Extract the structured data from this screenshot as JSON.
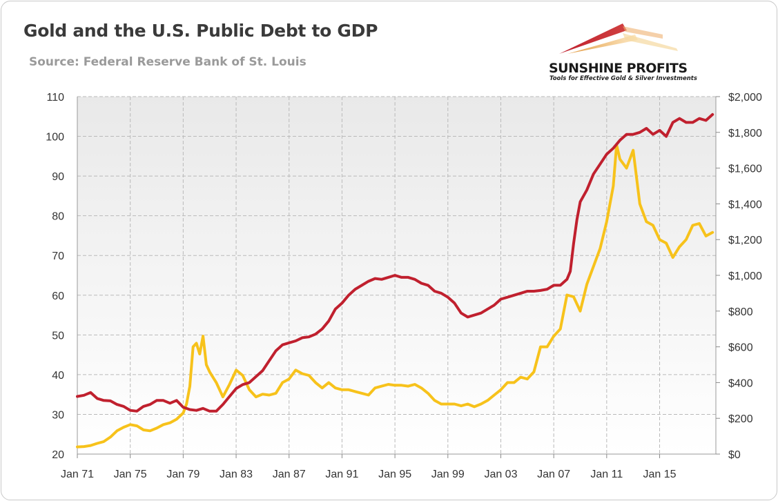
{
  "title": "Gold and the U.S. Public Debt to GDP",
  "subtitle": "Source: Federal Reserve Bank of St. Louis",
  "logo": {
    "name": "SUNSHINE PROFITS",
    "tagline": "Tools for Effective Gold & Silver Investments"
  },
  "colors": {
    "debt": "#c0202e",
    "gold": "#f7c21b",
    "grid": "#b9b9b9",
    "text": "#333333"
  },
  "chart_data": {
    "type": "line",
    "x_tick_labels": [
      "Jan 71",
      "Jan 75",
      "Jan 79",
      "Jan 83",
      "Jan 87",
      "Jan 91",
      "Jan 95",
      "Jan 99",
      "Jan 03",
      "Jan 07",
      "Jan 11",
      "Jan 15"
    ],
    "x_range": [
      1971.0,
      2019.25
    ],
    "y_left": {
      "range": [
        20,
        110
      ],
      "ticks": [
        "20",
        "30",
        "40",
        "50",
        "60",
        "70",
        "80",
        "90",
        "100",
        "110"
      ]
    },
    "y_right": {
      "range": [
        0,
        2000
      ],
      "ticks": [
        "$0",
        "$200",
        "$400",
        "$600",
        "$800",
        "$1,000",
        "$1,200",
        "$1,400",
        "$1,600",
        "$1,800",
        "$2,000"
      ]
    },
    "grid": true,
    "legend": "none",
    "series": [
      {
        "axis": "left",
        "color": "#c0202e",
        "x": [
          1971.0,
          1971.5,
          1972.0,
          1972.5,
          1973.0,
          1973.5,
          1974.0,
          1974.5,
          1975.0,
          1975.5,
          1976.0,
          1976.5,
          1977.0,
          1977.5,
          1978.0,
          1978.5,
          1979.0,
          1979.5,
          1980.0,
          1980.5,
          1981.0,
          1981.5,
          1982.0,
          1982.5,
          1983.0,
          1983.5,
          1984.0,
          1984.5,
          1985.0,
          1985.5,
          1986.0,
          1986.5,
          1987.0,
          1987.5,
          1988.0,
          1988.5,
          1989.0,
          1989.5,
          1990.0,
          1990.5,
          1991.0,
          1991.5,
          1992.0,
          1992.5,
          1993.0,
          1993.5,
          1994.0,
          1994.5,
          1995.0,
          1995.5,
          1996.0,
          1996.5,
          1997.0,
          1997.5,
          1998.0,
          1998.5,
          1999.0,
          1999.5,
          2000.0,
          2000.5,
          2001.0,
          2001.5,
          2002.0,
          2002.5,
          2003.0,
          2003.5,
          2004.0,
          2004.5,
          2005.0,
          2005.5,
          2006.0,
          2006.5,
          2007.0,
          2007.5,
          2008.0,
          2008.25,
          2008.5,
          2008.75,
          2009.0,
          2009.5,
          2010.0,
          2010.5,
          2011.0,
          2011.5,
          2012.0,
          2012.5,
          2013.0,
          2013.5,
          2014.0,
          2014.5,
          2015.0,
          2015.5,
          2016.0,
          2016.5,
          2017.0,
          2017.5,
          2018.0,
          2018.5,
          2019.0
        ],
        "y": [
          34.5,
          34.8,
          35.5,
          34,
          33.5,
          33.4,
          32.5,
          32,
          31,
          30.8,
          32,
          32.5,
          33.5,
          33.5,
          32.8,
          33.5,
          31.8,
          31.2,
          31,
          31.5,
          30.8,
          30.8,
          32.5,
          34.5,
          36.5,
          37.5,
          38,
          39.5,
          41,
          43.5,
          46,
          47.5,
          48,
          48.5,
          49.3,
          49.5,
          50.2,
          51.5,
          53.5,
          56.5,
          58,
          60,
          61.5,
          62.5,
          63.5,
          64.2,
          64,
          64.5,
          65,
          64.5,
          64.5,
          64,
          63,
          62.5,
          61,
          60.5,
          59.5,
          58,
          55.5,
          54.5,
          55,
          55.5,
          56.5,
          57.5,
          59,
          59.5,
          60,
          60.5,
          61,
          61,
          61.2,
          61.5,
          62.5,
          62.5,
          64,
          66,
          73,
          79,
          83.5,
          86.5,
          90.5,
          93,
          95.5,
          97,
          99,
          100.5,
          100.5,
          101,
          102,
          100.5,
          101.5,
          100,
          103.5,
          104.5,
          103.5,
          103.5,
          104.5,
          104,
          105.5
        ]
      },
      {
        "axis": "right",
        "color": "#f7c21b",
        "x": [
          1971.0,
          1971.5,
          1972.0,
          1972.5,
          1973.0,
          1973.5,
          1974.0,
          1974.5,
          1975.0,
          1975.5,
          1976.0,
          1976.5,
          1977.0,
          1977.5,
          1978.0,
          1978.5,
          1979.0,
          1979.25,
          1979.5,
          1979.75,
          1980.0,
          1980.25,
          1980.5,
          1980.75,
          1981.0,
          1981.5,
          1982.0,
          1982.5,
          1983.0,
          1983.5,
          1984.0,
          1984.5,
          1985.0,
          1985.5,
          1986.0,
          1986.5,
          1987.0,
          1987.5,
          1988.0,
          1988.5,
          1989.0,
          1989.5,
          1990.0,
          1990.5,
          1991.0,
          1991.5,
          1992.0,
          1992.5,
          1993.0,
          1993.5,
          1994.0,
          1994.5,
          1995.0,
          1995.5,
          1996.0,
          1996.5,
          1997.0,
          1997.5,
          1998.0,
          1998.5,
          1999.0,
          1999.5,
          2000.0,
          2000.5,
          2001.0,
          2001.5,
          2002.0,
          2002.5,
          2003.0,
          2003.5,
          2004.0,
          2004.5,
          2005.0,
          2005.5,
          2006.0,
          2006.5,
          2007.0,
          2007.5,
          2008.0,
          2008.5,
          2009.0,
          2009.5,
          2010.0,
          2010.5,
          2011.0,
          2011.5,
          2011.75,
          2012.0,
          2012.5,
          2013.0,
          2013.5,
          2014.0,
          2014.5,
          2015.0,
          2015.5,
          2016.0,
          2016.5,
          2017.0,
          2017.5,
          2018.0,
          2018.5,
          2019.0
        ],
        "y": [
          40,
          42,
          48,
          60,
          70,
          95,
          130,
          150,
          165,
          158,
          135,
          130,
          145,
          165,
          175,
          195,
          230,
          280,
          380,
          600,
          620,
          560,
          660,
          500,
          460,
          400,
          320,
          390,
          470,
          440,
          360,
          320,
          335,
          330,
          340,
          400,
          420,
          470,
          450,
          440,
          400,
          370,
          400,
          370,
          360,
          360,
          350,
          340,
          330,
          370,
          380,
          390,
          385,
          385,
          380,
          390,
          370,
          340,
          300,
          280,
          280,
          280,
          270,
          280,
          265,
          280,
          300,
          330,
          360,
          400,
          400,
          430,
          420,
          460,
          600,
          600,
          660,
          700,
          890,
          880,
          800,
          950,
          1050,
          1150,
          1300,
          1500,
          1730,
          1650,
          1600,
          1700,
          1400,
          1300,
          1280,
          1200,
          1180,
          1100,
          1160,
          1200,
          1280,
          1290,
          1220,
          1240
        ]
      }
    ]
  }
}
